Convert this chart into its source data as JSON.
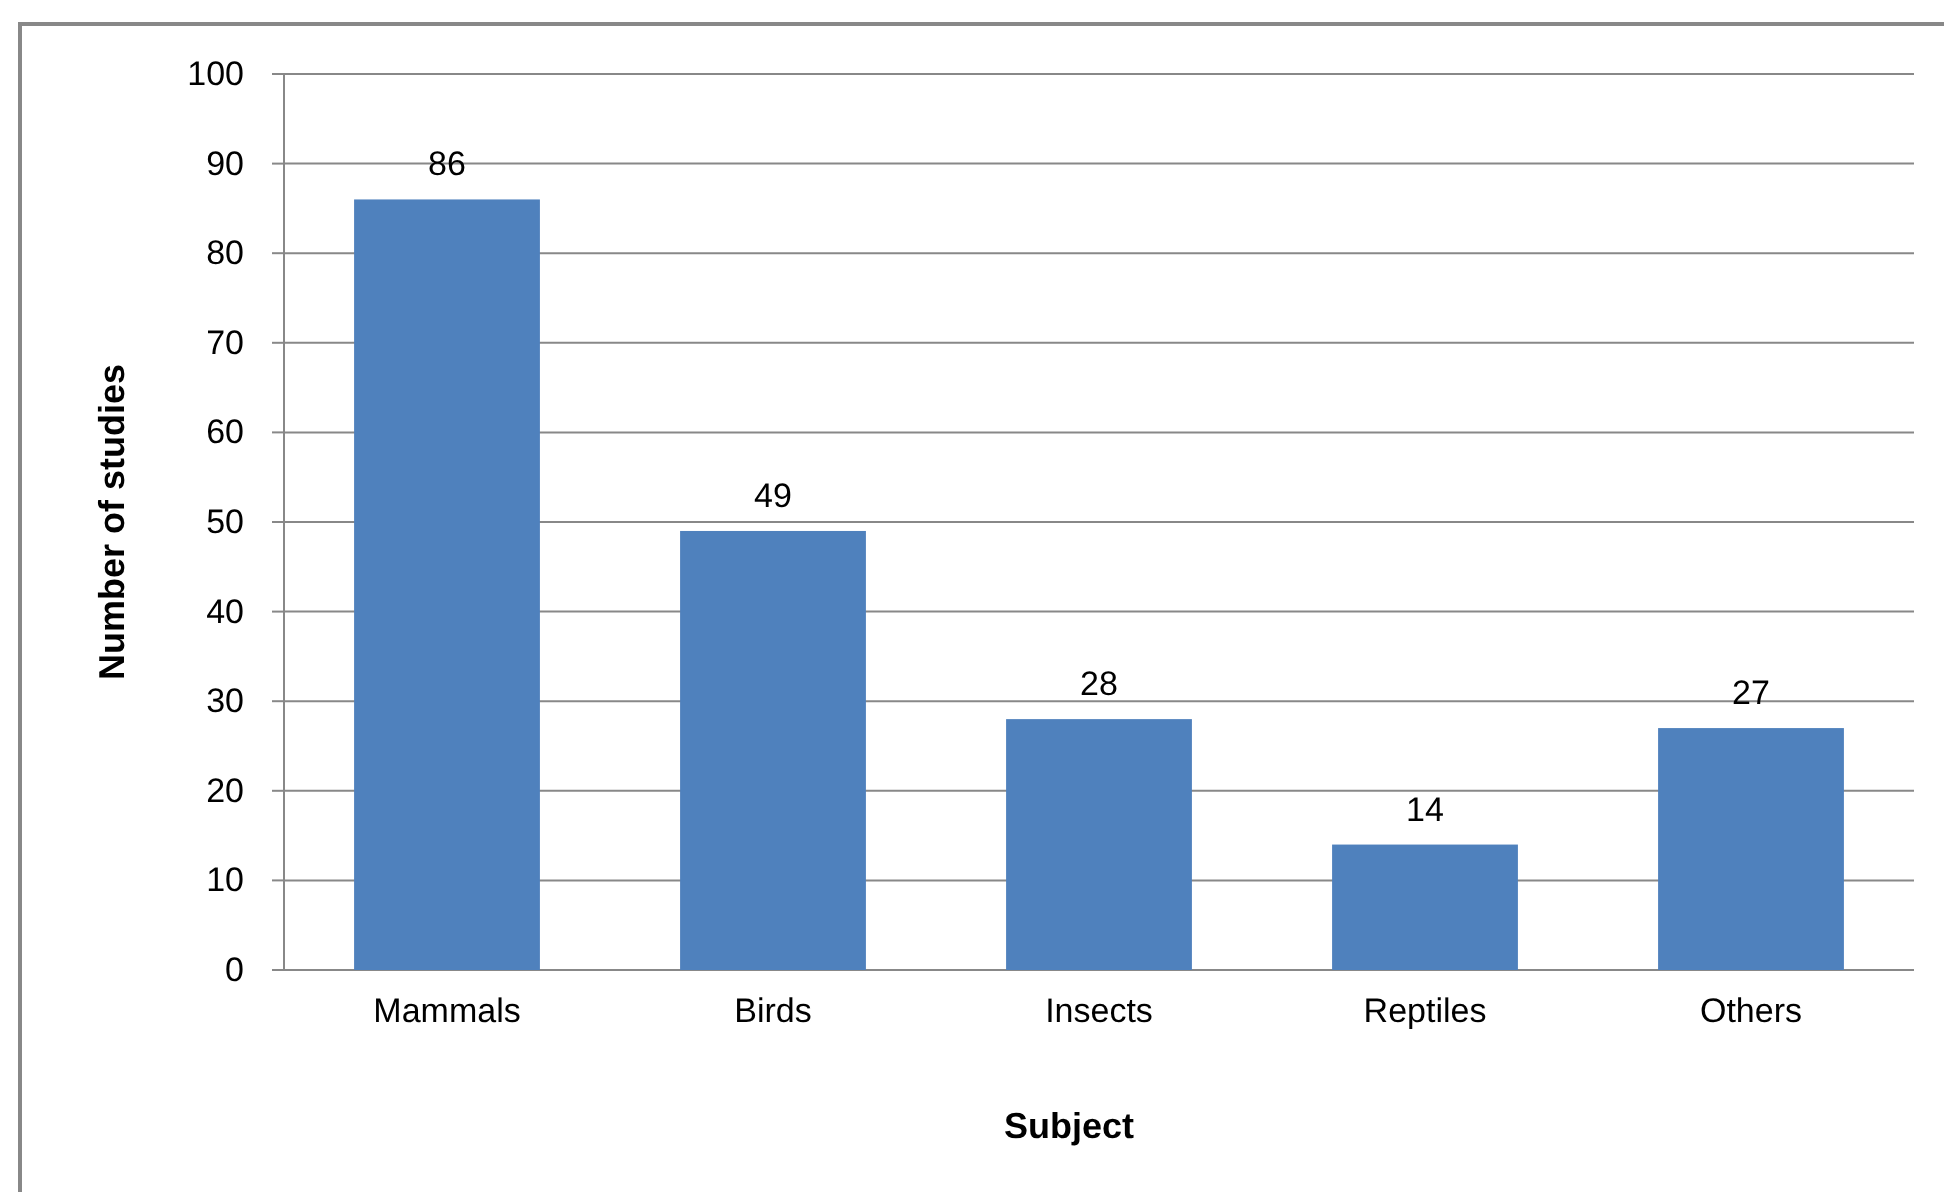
{
  "chart_data": {
    "type": "bar",
    "categories": [
      "Mammals",
      "Birds",
      "Insects",
      "Reptiles",
      "Others"
    ],
    "values": [
      86,
      49,
      28,
      14,
      27
    ],
    "color": "#4f81bd",
    "xlabel": "Subject",
    "ylabel": "Number of studies",
    "ylim": [
      0,
      100
    ],
    "yticks": [
      0,
      10,
      20,
      30,
      40,
      50,
      60,
      70,
      80,
      90,
      100
    ],
    "grid": "y",
    "data_labels": true
  }
}
